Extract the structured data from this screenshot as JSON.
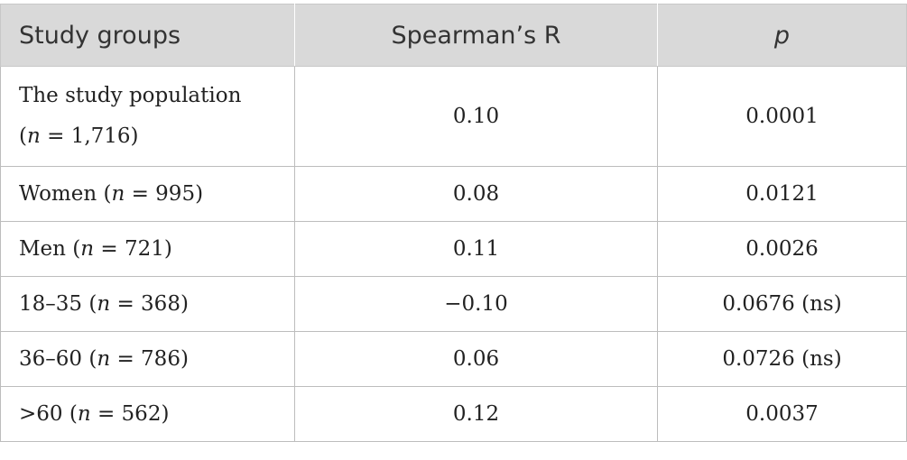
{
  "table": {
    "headers": {
      "groups": "Study groups",
      "spearman": "Spearman’s R",
      "p": "p"
    },
    "rows": [
      {
        "label_pre": "The study population",
        "label_line2_pre": "(",
        "n": "n",
        "label_post": " = 1,716)",
        "r": "0.10",
        "p": "0.0001"
      },
      {
        "label_pre": "Women (",
        "n": "n",
        "label_post": " = 995)",
        "r": "0.08",
        "p": "0.0121"
      },
      {
        "label_pre": "Men (",
        "n": "n",
        "label_post": " = 721)",
        "r": "0.11",
        "p": "0.0026"
      },
      {
        "label_pre": "18–35 (",
        "n": "n",
        "label_post": " = 368)",
        "r": "−0.10",
        "p": "0.0676 (ns)"
      },
      {
        "label_pre": "36–60 (",
        "n": "n",
        "label_post": " = 786)",
        "r": "0.06",
        "p": "0.0726 (ns)"
      },
      {
        "label_pre": ">60 (",
        "n": "n",
        "label_post": " = 562)",
        "r": "0.12",
        "p": "0.0037"
      }
    ]
  }
}
